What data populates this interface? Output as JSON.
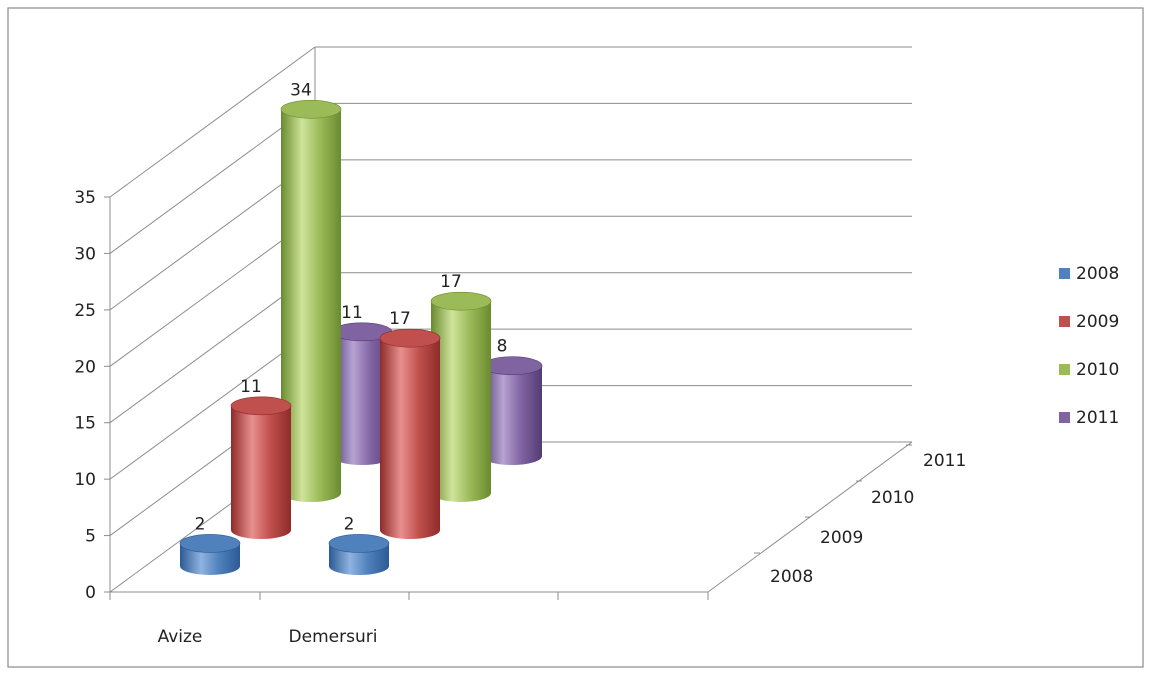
{
  "chart_data": {
    "type": "bar",
    "style": "3d-cylinder",
    "categories": [
      "Avize",
      "Demersuri"
    ],
    "series": [
      {
        "name": "2008",
        "values": [
          2,
          2
        ],
        "color": "#4f81bd",
        "color_dark": "#2c5a94",
        "color_light": "#8fb3e0"
      },
      {
        "name": "2009",
        "values": [
          11,
          17
        ],
        "color": "#c0504d",
        "color_dark": "#8e2b29",
        "color_light": "#e8908e"
      },
      {
        "name": "2010",
        "values": [
          34,
          17
        ],
        "color": "#9bbb59",
        "color_dark": "#6a8a2f",
        "color_light": "#cfe39a"
      },
      {
        "name": "2011",
        "values": [
          11,
          8
        ],
        "color": "#8064a2",
        "color_dark": "#533b75",
        "color_light": "#b7a3d3"
      }
    ],
    "y_ticks": [
      "0",
      "5",
      "10",
      "15",
      "20",
      "25",
      "30",
      "35"
    ],
    "ylim": [
      0,
      35
    ],
    "depth_labels": [
      "2008",
      "2009",
      "2010",
      "2011"
    ],
    "grid": true,
    "legend_position": "right"
  }
}
